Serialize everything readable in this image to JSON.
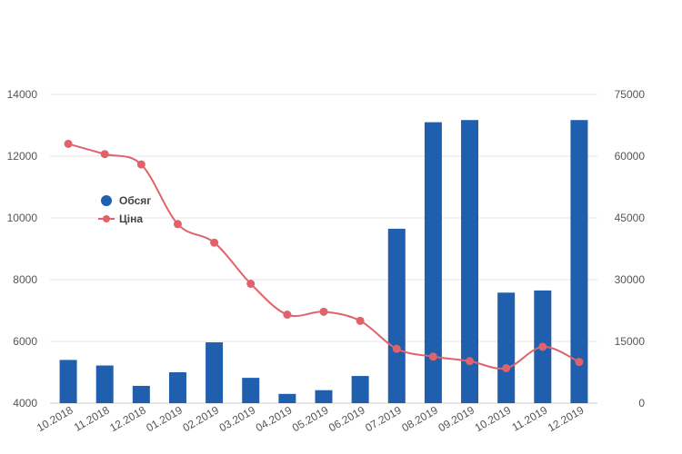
{
  "chart_data": {
    "type": "bar",
    "categories": [
      "10.2018",
      "11.2018",
      "12.2018",
      "01.2019",
      "02.2019",
      "03.2019",
      "04.2019",
      "05.2019",
      "06.2019",
      "07.2019",
      "08.2019",
      "09.2019",
      "10.2019",
      "11.2019",
      "12.2019"
    ],
    "series": [
      {
        "name": "Обсяг",
        "type": "bar",
        "axis": "left",
        "color": "#1f5fae",
        "values": [
          5400,
          5220,
          4560,
          5000,
          5970,
          4820,
          4300,
          4420,
          4880,
          9650,
          13100,
          13170,
          7580,
          7650,
          13170
        ]
      },
      {
        "name": "Ціна",
        "type": "line",
        "axis": "right",
        "color": "#e0636b",
        "values": [
          63000,
          60500,
          58000,
          43500,
          39000,
          29000,
          21500,
          22200,
          20000,
          13200,
          11300,
          10200,
          8500,
          13700,
          10000
        ]
      }
    ],
    "y_left": {
      "range": [
        4000,
        14000
      ],
      "ticks": [
        "4000",
        "6000",
        "8000",
        "10000",
        "12000",
        "14000"
      ]
    },
    "y_right": {
      "range": [
        0,
        75000
      ],
      "ticks": [
        "0",
        "15000",
        "30000",
        "45000",
        "60000",
        "75000"
      ]
    },
    "grid": "horizontal",
    "legend_position": "left, inside plot"
  }
}
